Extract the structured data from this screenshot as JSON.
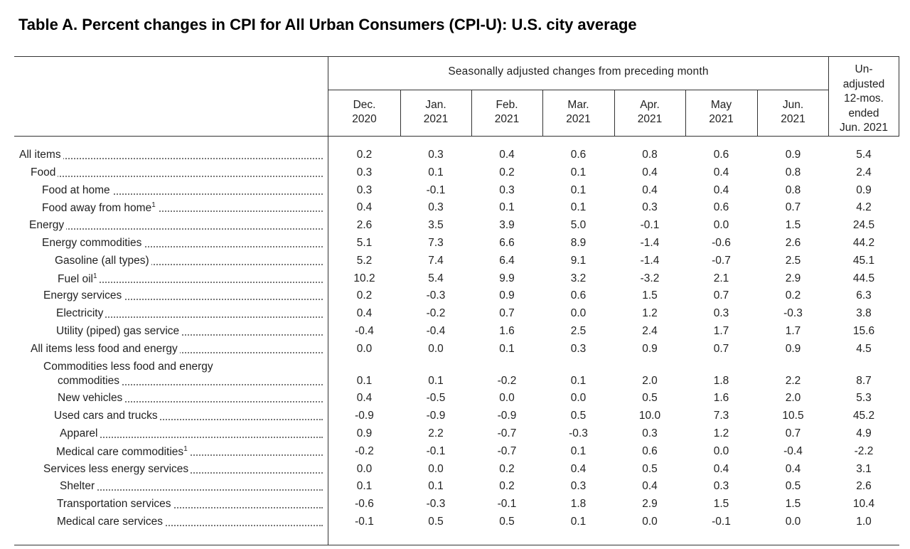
{
  "title": "Table A. Percent changes in CPI for All Urban Consumers (CPI-U): U.S. city average",
  "group_header": "Seasonally adjusted changes from preceding month",
  "columns": [
    {
      "line1": "Dec.",
      "line2": "2020"
    },
    {
      "line1": "Jan.",
      "line2": "2021"
    },
    {
      "line1": "Feb.",
      "line2": "2021"
    },
    {
      "line1": "Mar.",
      "line2": "2021"
    },
    {
      "line1": "Apr.",
      "line2": "2021"
    },
    {
      "line1": "May",
      "line2": "2021"
    },
    {
      "line1": "Jun.",
      "line2": "2021"
    }
  ],
  "unadjusted_header": [
    "Un-",
    "adjusted",
    "12-mos.",
    "ended",
    "Jun. 2021"
  ],
  "rows": [
    {
      "label": "All items",
      "values": [
        "0.2",
        "0.3",
        "0.4",
        "0.6",
        "0.8",
        "0.6",
        "0.9",
        "5.4"
      ]
    },
    {
      "label": "Food",
      "values": [
        "0.3",
        "0.1",
        "0.2",
        "0.1",
        "0.4",
        "0.4",
        "0.8",
        "2.4"
      ]
    },
    {
      "label": "Food at home",
      "values": [
        "0.3",
        "-0.1",
        "0.3",
        "0.1",
        "0.4",
        "0.4",
        "0.8",
        "0.9"
      ]
    },
    {
      "label": "Food away from home",
      "footnote": "1",
      "values": [
        "0.4",
        "0.3",
        "0.1",
        "0.1",
        "0.3",
        "0.6",
        "0.7",
        "4.2"
      ]
    },
    {
      "label": "Energy",
      "values": [
        "2.6",
        "3.5",
        "3.9",
        "5.0",
        "-0.1",
        "0.0",
        "1.5",
        "24.5"
      ]
    },
    {
      "label": "Energy commodities",
      "values": [
        "5.1",
        "7.3",
        "6.6",
        "8.9",
        "-1.4",
        "-0.6",
        "2.6",
        "44.2"
      ]
    },
    {
      "label": "Gasoline (all types)",
      "values": [
        "5.2",
        "7.4",
        "6.4",
        "9.1",
        "-1.4",
        "-0.7",
        "2.5",
        "45.1"
      ]
    },
    {
      "label": "Fuel oil",
      "footnote": "1",
      "values": [
        "10.2",
        "5.4",
        "9.9",
        "3.2",
        "-3.2",
        "2.1",
        "2.9",
        "44.5"
      ]
    },
    {
      "label": "Energy services",
      "values": [
        "0.2",
        "-0.3",
        "0.9",
        "0.6",
        "1.5",
        "0.7",
        "0.2",
        "6.3"
      ]
    },
    {
      "label": "Electricity",
      "values": [
        "0.4",
        "-0.2",
        "0.7",
        "0.0",
        "1.2",
        "0.3",
        "-0.3",
        "3.8"
      ]
    },
    {
      "label": "Utility (piped) gas service",
      "values": [
        "-0.4",
        "-0.4",
        "1.6",
        "2.5",
        "2.4",
        "1.7",
        "1.7",
        "15.6"
      ]
    },
    {
      "label": "All items less food and energy",
      "values": [
        "0.0",
        "0.0",
        "0.1",
        "0.3",
        "0.9",
        "0.7",
        "0.9",
        "4.5"
      ]
    },
    {
      "label": "commodities",
      "label_line1": "Commodities less food and energy",
      "values": [
        "0.1",
        "0.1",
        "-0.2",
        "0.1",
        "2.0",
        "1.8",
        "2.2",
        "8.7"
      ]
    },
    {
      "label": "New vehicles",
      "values": [
        "0.4",
        "-0.5",
        "0.0",
        "0.0",
        "0.5",
        "1.6",
        "2.0",
        "5.3"
      ]
    },
    {
      "label": "Used cars and trucks",
      "values": [
        "-0.9",
        "-0.9",
        "-0.9",
        "0.5",
        "10.0",
        "7.3",
        "10.5",
        "45.2"
      ]
    },
    {
      "label": "Apparel",
      "values": [
        "0.9",
        "2.2",
        "-0.7",
        "-0.3",
        "0.3",
        "1.2",
        "0.7",
        "4.9"
      ]
    },
    {
      "label": "Medical care commodities",
      "footnote": "1",
      "values": [
        "-0.2",
        "-0.1",
        "-0.7",
        "0.1",
        "0.6",
        "0.0",
        "-0.4",
        "-2.2"
      ]
    },
    {
      "label": "Services less energy services",
      "values": [
        "0.0",
        "0.0",
        "0.2",
        "0.4",
        "0.5",
        "0.4",
        "0.4",
        "3.1"
      ]
    },
    {
      "label": "Shelter",
      "values": [
        "0.1",
        "0.1",
        "0.2",
        "0.3",
        "0.4",
        "0.3",
        "0.5",
        "2.6"
      ]
    },
    {
      "label": "Transportation services",
      "values": [
        "-0.6",
        "-0.3",
        "-0.1",
        "1.8",
        "2.9",
        "1.5",
        "1.5",
        "10.4"
      ]
    },
    {
      "label": "Medical care services",
      "values": [
        "-0.1",
        "0.5",
        "0.5",
        "0.1",
        "0.0",
        "-0.1",
        "0.0",
        "1.0"
      ]
    }
  ]
}
